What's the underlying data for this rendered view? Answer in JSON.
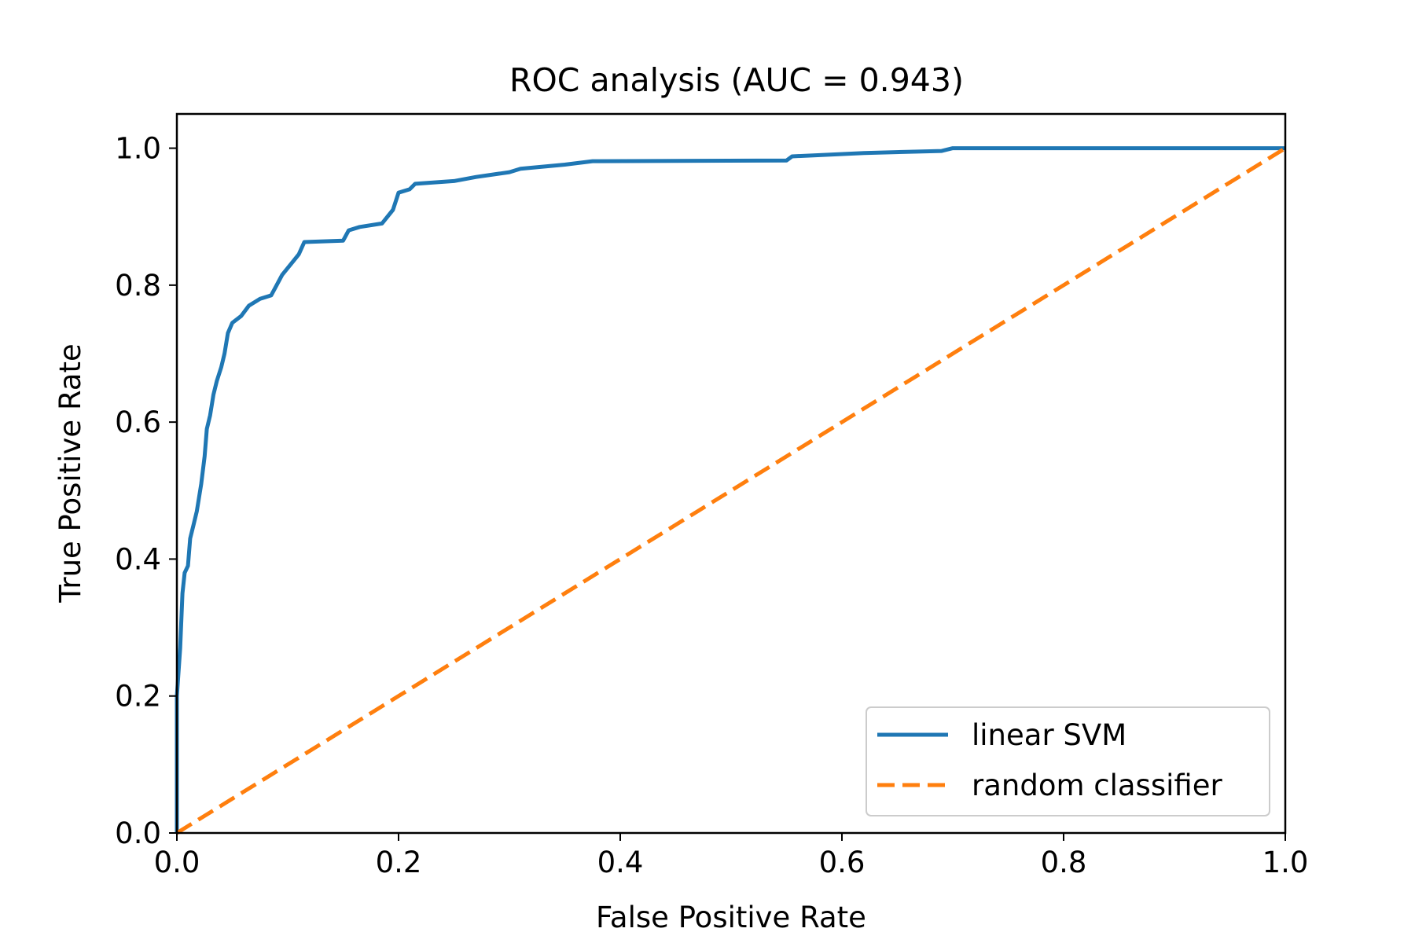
{
  "chart_data": {
    "type": "line",
    "title": "ROC analysis (AUC = 0.943)",
    "xlabel": "False Positive Rate",
    "ylabel": "True Positive Rate",
    "xlim": [
      0.0,
      1.0
    ],
    "ylim": [
      0.0,
      1.05
    ],
    "xticks": [
      "0.0",
      "0.2",
      "0.4",
      "0.6",
      "0.8",
      "1.0"
    ],
    "yticks": [
      "0.0",
      "0.2",
      "0.4",
      "0.6",
      "0.8",
      "1.0"
    ],
    "grid": false,
    "legend_position": "lower-right",
    "series": [
      {
        "name": "linear SVM",
        "color": "#1f77b4",
        "style": "solid",
        "points": [
          [
            0.0,
            0.0
          ],
          [
            0.0,
            0.2
          ],
          [
            0.003,
            0.27
          ],
          [
            0.005,
            0.35
          ],
          [
            0.007,
            0.38
          ],
          [
            0.01,
            0.39
          ],
          [
            0.012,
            0.43
          ],
          [
            0.015,
            0.45
          ],
          [
            0.018,
            0.47
          ],
          [
            0.02,
            0.49
          ],
          [
            0.022,
            0.51
          ],
          [
            0.025,
            0.55
          ],
          [
            0.027,
            0.59
          ],
          [
            0.03,
            0.61
          ],
          [
            0.033,
            0.64
          ],
          [
            0.036,
            0.66
          ],
          [
            0.04,
            0.68
          ],
          [
            0.043,
            0.7
          ],
          [
            0.046,
            0.73
          ],
          [
            0.05,
            0.745
          ],
          [
            0.058,
            0.755
          ],
          [
            0.065,
            0.77
          ],
          [
            0.075,
            0.78
          ],
          [
            0.085,
            0.785
          ],
          [
            0.09,
            0.8
          ],
          [
            0.095,
            0.815
          ],
          [
            0.1,
            0.825
          ],
          [
            0.105,
            0.835
          ],
          [
            0.11,
            0.845
          ],
          [
            0.115,
            0.863
          ],
          [
            0.15,
            0.865
          ],
          [
            0.155,
            0.88
          ],
          [
            0.165,
            0.885
          ],
          [
            0.185,
            0.89
          ],
          [
            0.195,
            0.91
          ],
          [
            0.2,
            0.935
          ],
          [
            0.21,
            0.94
          ],
          [
            0.215,
            0.948
          ],
          [
            0.25,
            0.952
          ],
          [
            0.27,
            0.958
          ],
          [
            0.3,
            0.965
          ],
          [
            0.31,
            0.97
          ],
          [
            0.35,
            0.976
          ],
          [
            0.375,
            0.981
          ],
          [
            0.55,
            0.982
          ],
          [
            0.555,
            0.988
          ],
          [
            0.62,
            0.993
          ],
          [
            0.69,
            0.996
          ],
          [
            0.7,
            1.0
          ],
          [
            1.0,
            1.0
          ]
        ]
      },
      {
        "name": "random classifier",
        "color": "#ff7f0e",
        "style": "dashed",
        "points": [
          [
            0.0,
            0.0
          ],
          [
            1.0,
            1.0
          ]
        ]
      }
    ]
  }
}
